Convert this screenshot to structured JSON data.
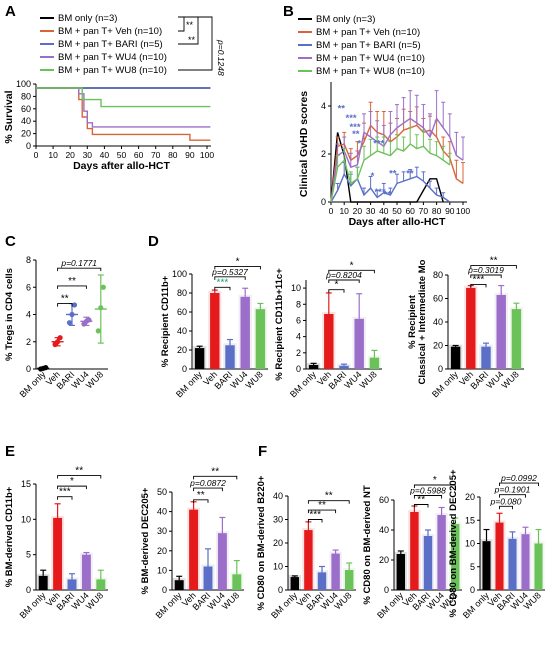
{
  "colors": {
    "bm": "#000000",
    "veh": "#e41a1c",
    "bari": "#5b6fc6",
    "wu4": "#9b6fc9",
    "wu8": "#6cc25a",
    "veh_line": "#d9643a"
  },
  "chart_data": [
    {
      "panel": "A",
      "type": "line",
      "title": "",
      "xlabel": "Days after allo-HCT",
      "ylabel": "% Survival",
      "xlim": [
        0,
        100
      ],
      "ylim": [
        0,
        100
      ],
      "xticks": [
        "0",
        "10",
        "20",
        "30",
        "40",
        "50",
        "60",
        "70",
        "80",
        "90",
        "100"
      ],
      "yticks": [
        "0",
        "20",
        "40",
        "60",
        "80",
        "100"
      ],
      "legend": [
        "BM only (n=3)",
        "BM + pan T+ Veh (n=10)",
        "BM + pan T+ BARI (n=5)",
        "BM + pan T+ WU4 (n=10)",
        "BM + pan T+ WU8 (n=10)"
      ],
      "sig": [
        "**",
        "**",
        "p=0.1248"
      ],
      "series": [
        {
          "key": "bm",
          "steps": [
            [
              0,
              100
            ],
            [
              102,
              100
            ]
          ]
        },
        {
          "key": "veh",
          "steps": [
            [
              0,
              100
            ],
            [
              25,
              100
            ],
            [
              25,
              80
            ],
            [
              27,
              80
            ],
            [
              27,
              50
            ],
            [
              30,
              50
            ],
            [
              30,
              30
            ],
            [
              33,
              30
            ],
            [
              33,
              20
            ],
            [
              90,
              20
            ],
            [
              90,
              10
            ],
            [
              102,
              10
            ]
          ]
        },
        {
          "key": "bari",
          "steps": [
            [
              0,
              100
            ],
            [
              102,
              100
            ]
          ]
        },
        {
          "key": "wu4",
          "steps": [
            [
              0,
              100
            ],
            [
              25,
              100
            ],
            [
              25,
              90
            ],
            [
              28,
              90
            ],
            [
              28,
              60
            ],
            [
              30,
              60
            ],
            [
              30,
              40
            ],
            [
              33,
              40
            ],
            [
              33,
              33
            ],
            [
              102,
              33
            ]
          ]
        },
        {
          "key": "wu8",
          "steps": [
            [
              0,
              100
            ],
            [
              27,
              100
            ],
            [
              27,
              80
            ],
            [
              38,
              80
            ],
            [
              38,
              68
            ],
            [
              102,
              68
            ]
          ]
        }
      ]
    },
    {
      "panel": "B",
      "type": "line",
      "title": "",
      "xlabel": "Days after allo-HCT",
      "ylabel": "Clinical GvHD scores",
      "xlim": [
        0,
        100
      ],
      "ylim": [
        0,
        5
      ],
      "xticks": [
        "0",
        "10",
        "20",
        "30",
        "40",
        "50",
        "60",
        "70",
        "80",
        "90",
        "100"
      ],
      "yticks": [
        "0",
        "2",
        "4"
      ],
      "legend": [
        "BM only (n=3)",
        "BM + pan T+ Veh (n=10)",
        "BM + pan T+ BARI (n=5)",
        "BM + pan T+ WU4 (n=10)",
        "BM + pan T+ WU8 (n=10)"
      ],
      "stars": [
        {
          "text": "**",
          "x": 5,
          "y": 3.9
        },
        {
          "text": "***",
          "x": 11,
          "y": 3.5
        },
        {
          "text": "***",
          "x": 14,
          "y": 3.1
        },
        {
          "text": "**",
          "x": 16,
          "y": 2.8
        },
        {
          "text": "*",
          "x": 20,
          "y": 2.4
        },
        {
          "text": "***",
          "x": 32,
          "y": 2.4
        },
        {
          "text": "*",
          "x": 30,
          "y": 1.0
        },
        {
          "text": "**",
          "x": 44,
          "y": 1.1
        },
        {
          "text": "**",
          "x": 57,
          "y": 1.1
        },
        {
          "text": "***",
          "x": 33,
          "y": 0.3
        },
        {
          "text": "**",
          "x": 40,
          "y": 0.2
        }
      ],
      "series": [
        {
          "key": "bm",
          "x": [
            0,
            5,
            10,
            15,
            20,
            25,
            30,
            35,
            40,
            45,
            50,
            55,
            60,
            65,
            70,
            75,
            80,
            85
          ],
          "y": [
            0,
            3.0,
            2.0,
            0.0,
            0.0,
            0.0,
            0.0,
            0.0,
            0.0,
            0.0,
            0.0,
            0.0,
            0.0,
            0.0,
            0.5,
            1.0,
            1.0,
            0.0
          ]
        },
        {
          "key": "veh",
          "x": [
            0,
            5,
            10,
            15,
            20,
            25,
            30,
            35,
            40,
            45,
            50,
            55,
            60,
            65,
            70,
            75,
            80,
            85,
            90,
            95,
            100
          ],
          "y": [
            0,
            2.4,
            2.5,
            1.8,
            2.0,
            2.6,
            3.3,
            3.0,
            2.9,
            2.6,
            2.8,
            3.1,
            3.2,
            3.3,
            3.0,
            3.1,
            2.8,
            2.2,
            1.9,
            1.0,
            0.8
          ],
          "err": [
            0,
            0.4,
            0.5,
            0.5,
            0.6,
            0.8,
            1.0,
            0.9,
            1.0,
            0.8,
            0.8,
            0.9,
            0.7,
            0.8,
            0.6,
            0.6,
            0.7,
            0.6,
            0.7,
            0.8,
            0.9
          ]
        },
        {
          "key": "bari",
          "x": [
            0,
            5,
            10,
            15,
            20,
            25,
            30,
            35,
            40,
            45,
            50,
            55,
            60,
            65,
            70,
            75,
            80,
            85,
            90
          ],
          "y": [
            0,
            0.5,
            1.2,
            0.7,
            1.0,
            0.3,
            0.6,
            0.2,
            0.4,
            0.3,
            0.8,
            0.9,
            1.0,
            1.1,
            0.9,
            0.6,
            0.3,
            0.2,
            0.0
          ],
          "err": [
            0,
            0.3,
            0.5,
            0.5,
            0.5,
            0.3,
            0.5,
            0.3,
            0.4,
            0.3,
            0.4,
            0.4,
            0.4,
            0.4,
            0.4,
            0.3,
            0.3,
            0.2,
            0
          ]
        },
        {
          "key": "wu4",
          "x": [
            0,
            5,
            10,
            15,
            20,
            25,
            30,
            35,
            40,
            45,
            50,
            55,
            60,
            65,
            70,
            75,
            80,
            85,
            90,
            95,
            100
          ],
          "y": [
            0,
            2.0,
            2.2,
            1.5,
            1.6,
            3.0,
            2.8,
            2.6,
            2.4,
            2.9,
            3.2,
            3.4,
            3.6,
            3.4,
            3.2,
            2.8,
            3.6,
            3.2,
            2.8,
            2.0,
            1.8
          ],
          "err": [
            0,
            0.5,
            0.6,
            0.6,
            0.6,
            0.8,
            1.1,
            0.9,
            0.9,
            1.0,
            1.0,
            1.1,
            1.2,
            1.2,
            1.0,
            1.0,
            1.2,
            1.1,
            1.0,
            1.0,
            1.0
          ]
        },
        {
          "key": "wu8",
          "x": [
            0,
            5,
            10,
            15,
            20,
            25,
            30,
            35,
            40,
            45,
            50,
            55,
            60,
            65,
            70,
            75,
            80,
            85,
            90
          ],
          "y": [
            0,
            1.5,
            1.8,
            0.8,
            1.0,
            1.8,
            2.0,
            2.2,
            2.1,
            2.0,
            2.3,
            2.2,
            2.5,
            2.3,
            2.4,
            2.1,
            2.0,
            1.8,
            1.6
          ],
          "err": [
            0,
            0.5,
            0.5,
            0.5,
            0.5,
            0.6,
            0.7,
            0.6,
            0.7,
            0.6,
            0.6,
            0.6,
            0.7,
            0.6,
            0.7,
            0.6,
            0.6,
            0.6,
            0.5
          ]
        }
      ]
    },
    {
      "panel": "C",
      "type": "scatter",
      "ylabel": "% Tregs in CD4 cells",
      "ylim": [
        0,
        8
      ],
      "yticks": [
        "0",
        "2",
        "4",
        "6",
        "8"
      ],
      "categories": [
        "BM only",
        "Veh",
        "BARI",
        "WU4",
        "WU8"
      ],
      "mean": [
        0.05,
        2.0,
        4.0,
        3.5,
        4.4
      ],
      "err": [
        0.05,
        0.3,
        0.8,
        0.3,
        2.5
      ],
      "points": [
        [
          0,
          0.05,
          0.1
        ],
        [
          1.8,
          2.0,
          2.3
        ],
        [
          3.4,
          4.0,
          4.7
        ],
        [
          3.3,
          3.5,
          3.6
        ],
        [
          2.8,
          4.5,
          6.0
        ]
      ],
      "sig": [
        {
          "text": "p=0.1771",
          "a": 1,
          "b": 4,
          "y": 7.4
        },
        {
          "text": "**",
          "a": 1,
          "b": 3,
          "y": 6.1
        },
        {
          "text": "**",
          "a": 1,
          "b": 2,
          "y": 4.8
        }
      ]
    },
    {
      "panel": "D1",
      "type": "bar",
      "ylabel": "% Recipient CD11b+",
      "ylim": [
        0,
        100
      ],
      "yticks": [
        "0",
        "20",
        "40",
        "60",
        "80",
        "100"
      ],
      "categories": [
        "BM only",
        "Veh",
        "BARI",
        "WU4",
        "WU8"
      ],
      "values": [
        22,
        80,
        25,
        76,
        63
      ],
      "err": [
        2,
        3,
        6,
        9,
        6
      ],
      "sig": [
        {
          "text": "*",
          "a": 1,
          "b": 4,
          "y": 108
        },
        {
          "text": "p=0.5327",
          "a": 1,
          "b": 3,
          "y": 97
        },
        {
          "text": "***",
          "a": 1,
          "b": 2,
          "y": 86
        }
      ]
    },
    {
      "panel": "D2",
      "type": "bar",
      "ylabel": "% Recipient CD11b+11c+",
      "ylim": [
        0,
        11
      ],
      "yticks": [
        "0",
        "2",
        "4",
        "6",
        "8",
        "10"
      ],
      "categories": [
        "BM only",
        "Veh",
        "BARI",
        "WU4",
        "WU8"
      ],
      "values": [
        0.5,
        6.8,
        0.4,
        6.2,
        1.4
      ],
      "err": [
        0.2,
        2.6,
        0.2,
        3.1,
        0.9
      ],
      "sig": [
        {
          "text": "*",
          "a": 1,
          "b": 4,
          "y": 12.2
        },
        {
          "text": "p=0.8204",
          "a": 1,
          "b": 3,
          "y": 11.0
        },
        {
          "text": "*",
          "a": 1,
          "b": 2,
          "y": 9.8
        }
      ]
    },
    {
      "panel": "D3",
      "type": "bar",
      "ylabel": "% Recipient\nClassical + Intermediate Mo",
      "ylim": [
        0,
        80
      ],
      "yticks": [
        "0",
        "20",
        "40",
        "60",
        "80"
      ],
      "categories": [
        "BM only",
        "Veh",
        "BARI",
        "WU4",
        "WU8"
      ],
      "values": [
        19,
        69,
        19,
        63,
        51
      ],
      "err": [
        1,
        2,
        3,
        8,
        5
      ],
      "sig": [
        {
          "text": "**",
          "a": 1,
          "b": 4,
          "y": 88
        },
        {
          "text": "p=0.3019",
          "a": 1,
          "b": 3,
          "y": 80
        },
        {
          "text": "***",
          "a": 1,
          "b": 2,
          "y": 72
        }
      ]
    },
    {
      "panel": "E1",
      "type": "bar",
      "ylabel": "% BM-derived CD11b+",
      "ylim": [
        0,
        15
      ],
      "yticks": [
        "0",
        "5",
        "10",
        "15"
      ],
      "categories": [
        "BM only",
        "Veh",
        "BARI",
        "WU4",
        "WU8"
      ],
      "values": [
        2.0,
        10.2,
        1.5,
        5.0,
        1.5
      ],
      "err": [
        0.8,
        2.0,
        0.8,
        0.3,
        1.3
      ],
      "sig": [
        {
          "text": "**",
          "a": 1,
          "b": 4,
          "y": 16.2
        },
        {
          "text": "*",
          "a": 1,
          "b": 3,
          "y": 14.7
        },
        {
          "text": "***",
          "a": 1,
          "b": 2,
          "y": 13.2
        }
      ]
    },
    {
      "panel": "E2",
      "type": "bar",
      "ylabel": "% BM-derived DEC205+",
      "ylim": [
        0,
        50
      ],
      "yticks": [
        "0",
        "10",
        "20",
        "30",
        "40",
        "50"
      ],
      "categories": [
        "BM only",
        "Veh",
        "BARI",
        "WU4",
        "WU8"
      ],
      "values": [
        5,
        41,
        12,
        29,
        8
      ],
      "err": [
        2,
        4,
        9,
        8,
        7
      ],
      "sig": [
        {
          "text": "**",
          "a": 1,
          "b": 4,
          "y": 58
        },
        {
          "text": "p=0.0872",
          "a": 1,
          "b": 3,
          "y": 52
        },
        {
          "text": "**",
          "a": 1,
          "b": 2,
          "y": 46
        }
      ]
    },
    {
      "panel": "F1",
      "type": "bar",
      "ylabel": "% CD80 on BM-derived B220+",
      "ylim": [
        0,
        40
      ],
      "yticks": [
        "0",
        "10",
        "20",
        "30",
        "40"
      ],
      "categories": [
        "BM only",
        "Veh",
        "BARI",
        "WU4",
        "WU8"
      ],
      "values": [
        5.5,
        25.5,
        7.5,
        15.5,
        8.5
      ],
      "err": [
        0.5,
        3.5,
        2.5,
        1.5,
        3.0
      ],
      "sig": [
        {
          "text": "**",
          "a": 1,
          "b": 4,
          "y": 38
        },
        {
          "text": "**",
          "a": 1,
          "b": 3,
          "y": 34
        },
        {
          "text": "***",
          "a": 1,
          "b": 2,
          "y": 30
        }
      ]
    },
    {
      "panel": "F2",
      "type": "bar",
      "ylabel": "% CD80 on BM-derived NT",
      "ylim": [
        0,
        60
      ],
      "yticks": [
        "0",
        "20",
        "40",
        "60"
      ],
      "categories": [
        "BM only",
        "Veh",
        "BARI",
        "WU4",
        "WU8"
      ],
      "values": [
        24,
        52,
        36,
        50,
        44
      ],
      "err": [
        2,
        4,
        4,
        5,
        4
      ],
      "sig": [
        {
          "text": "*",
          "a": 1,
          "b": 4,
          "y": 70
        },
        {
          "text": "p=0.5988",
          "a": 1,
          "b": 3,
          "y": 63
        },
        {
          "text": "**",
          "a": 1,
          "b": 2,
          "y": 57
        }
      ]
    },
    {
      "panel": "F3",
      "type": "bar",
      "ylabel": "% CD80 on BM-derived DEC205+",
      "ylim": [
        0,
        20
      ],
      "yticks": [
        "0",
        "5",
        "10",
        "15",
        "20"
      ],
      "categories": [
        "BM only",
        "Veh",
        "BARI",
        "WU4",
        "WU8"
      ],
      "values": [
        10.5,
        14.5,
        11,
        12,
        10
      ],
      "err": [
        2.5,
        2,
        1.5,
        1.5,
        3
      ],
      "sig": [
        {
          "text": "p=0.0992",
          "a": 1,
          "b": 4,
          "y": 23
        },
        {
          "text": "p=0.1901",
          "a": 1,
          "b": 3,
          "y": 20.5
        },
        {
          "text": "p=0.080",
          "a": 1,
          "b": 2,
          "y": 18
        }
      ]
    }
  ],
  "panel_labels": [
    "A",
    "B",
    "C",
    "D",
    "E",
    "F"
  ]
}
